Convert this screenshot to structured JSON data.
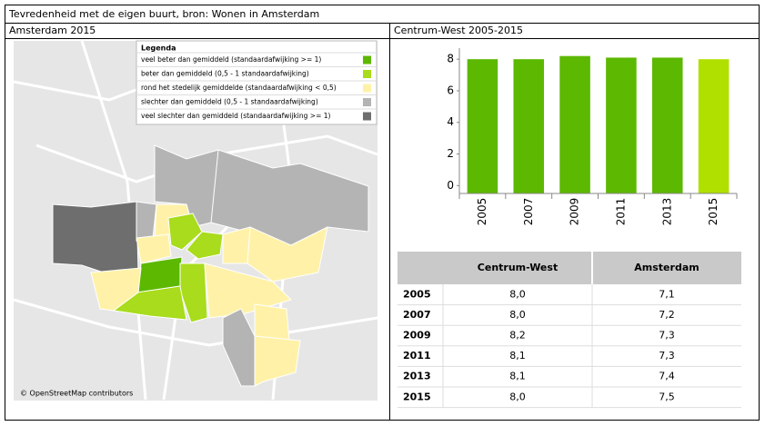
{
  "title": "Tevredenheid met de eigen buurt, bron: Wonen in Amsterdam",
  "map": {
    "title": "Amsterdam 2015",
    "legend_title": "Legenda",
    "legend": [
      {
        "label": "veel beter dan gemiddeld (standaardafwijking >= 1)",
        "color": "#5cb800"
      },
      {
        "label": "beter dan gemiddeld (0,5 - 1 standaardafwijking)",
        "color": "#a8dc1c"
      },
      {
        "label": "rond het stedelijk gemiddelde (standaardafwijking < 0,5)",
        "color": "#fff2a8"
      },
      {
        "label": "slechter dan gemiddeld (0,5 - 1 standaardafwijking)",
        "color": "#b4b4b4"
      },
      {
        "label": "veel slechter dan gemiddeld (standaardafwijking >= 1)",
        "color": "#6e6e6e"
      }
    ],
    "attribution": "© OpenStreetMap contributors"
  },
  "chart_data": {
    "type": "bar",
    "title": "Centrum-West 2005-2015",
    "categories": [
      "2005",
      "2007",
      "2009",
      "2011",
      "2013",
      "2015"
    ],
    "values": [
      8.0,
      8.0,
      8.2,
      8.1,
      8.1,
      8.0
    ],
    "colors": [
      "#5cb800",
      "#5cb800",
      "#5cb800",
      "#5cb800",
      "#5cb800",
      "#b0e000"
    ],
    "ylim": [
      -0.5,
      8.7
    ],
    "yticks": [
      0,
      2,
      4,
      6,
      8
    ],
    "grid": false
  },
  "table": {
    "columns": [
      "Centrum-West",
      "Amsterdam"
    ],
    "rows": [
      {
        "year": "2005",
        "values": [
          "8,0",
          "7,1"
        ]
      },
      {
        "year": "2007",
        "values": [
          "8,0",
          "7,2"
        ]
      },
      {
        "year": "2009",
        "values": [
          "8,2",
          "7,3"
        ]
      },
      {
        "year": "2011",
        "values": [
          "8,1",
          "7,3"
        ]
      },
      {
        "year": "2013",
        "values": [
          "8,1",
          "7,4"
        ]
      },
      {
        "year": "2015",
        "values": [
          "8,0",
          "7,5"
        ]
      }
    ]
  }
}
